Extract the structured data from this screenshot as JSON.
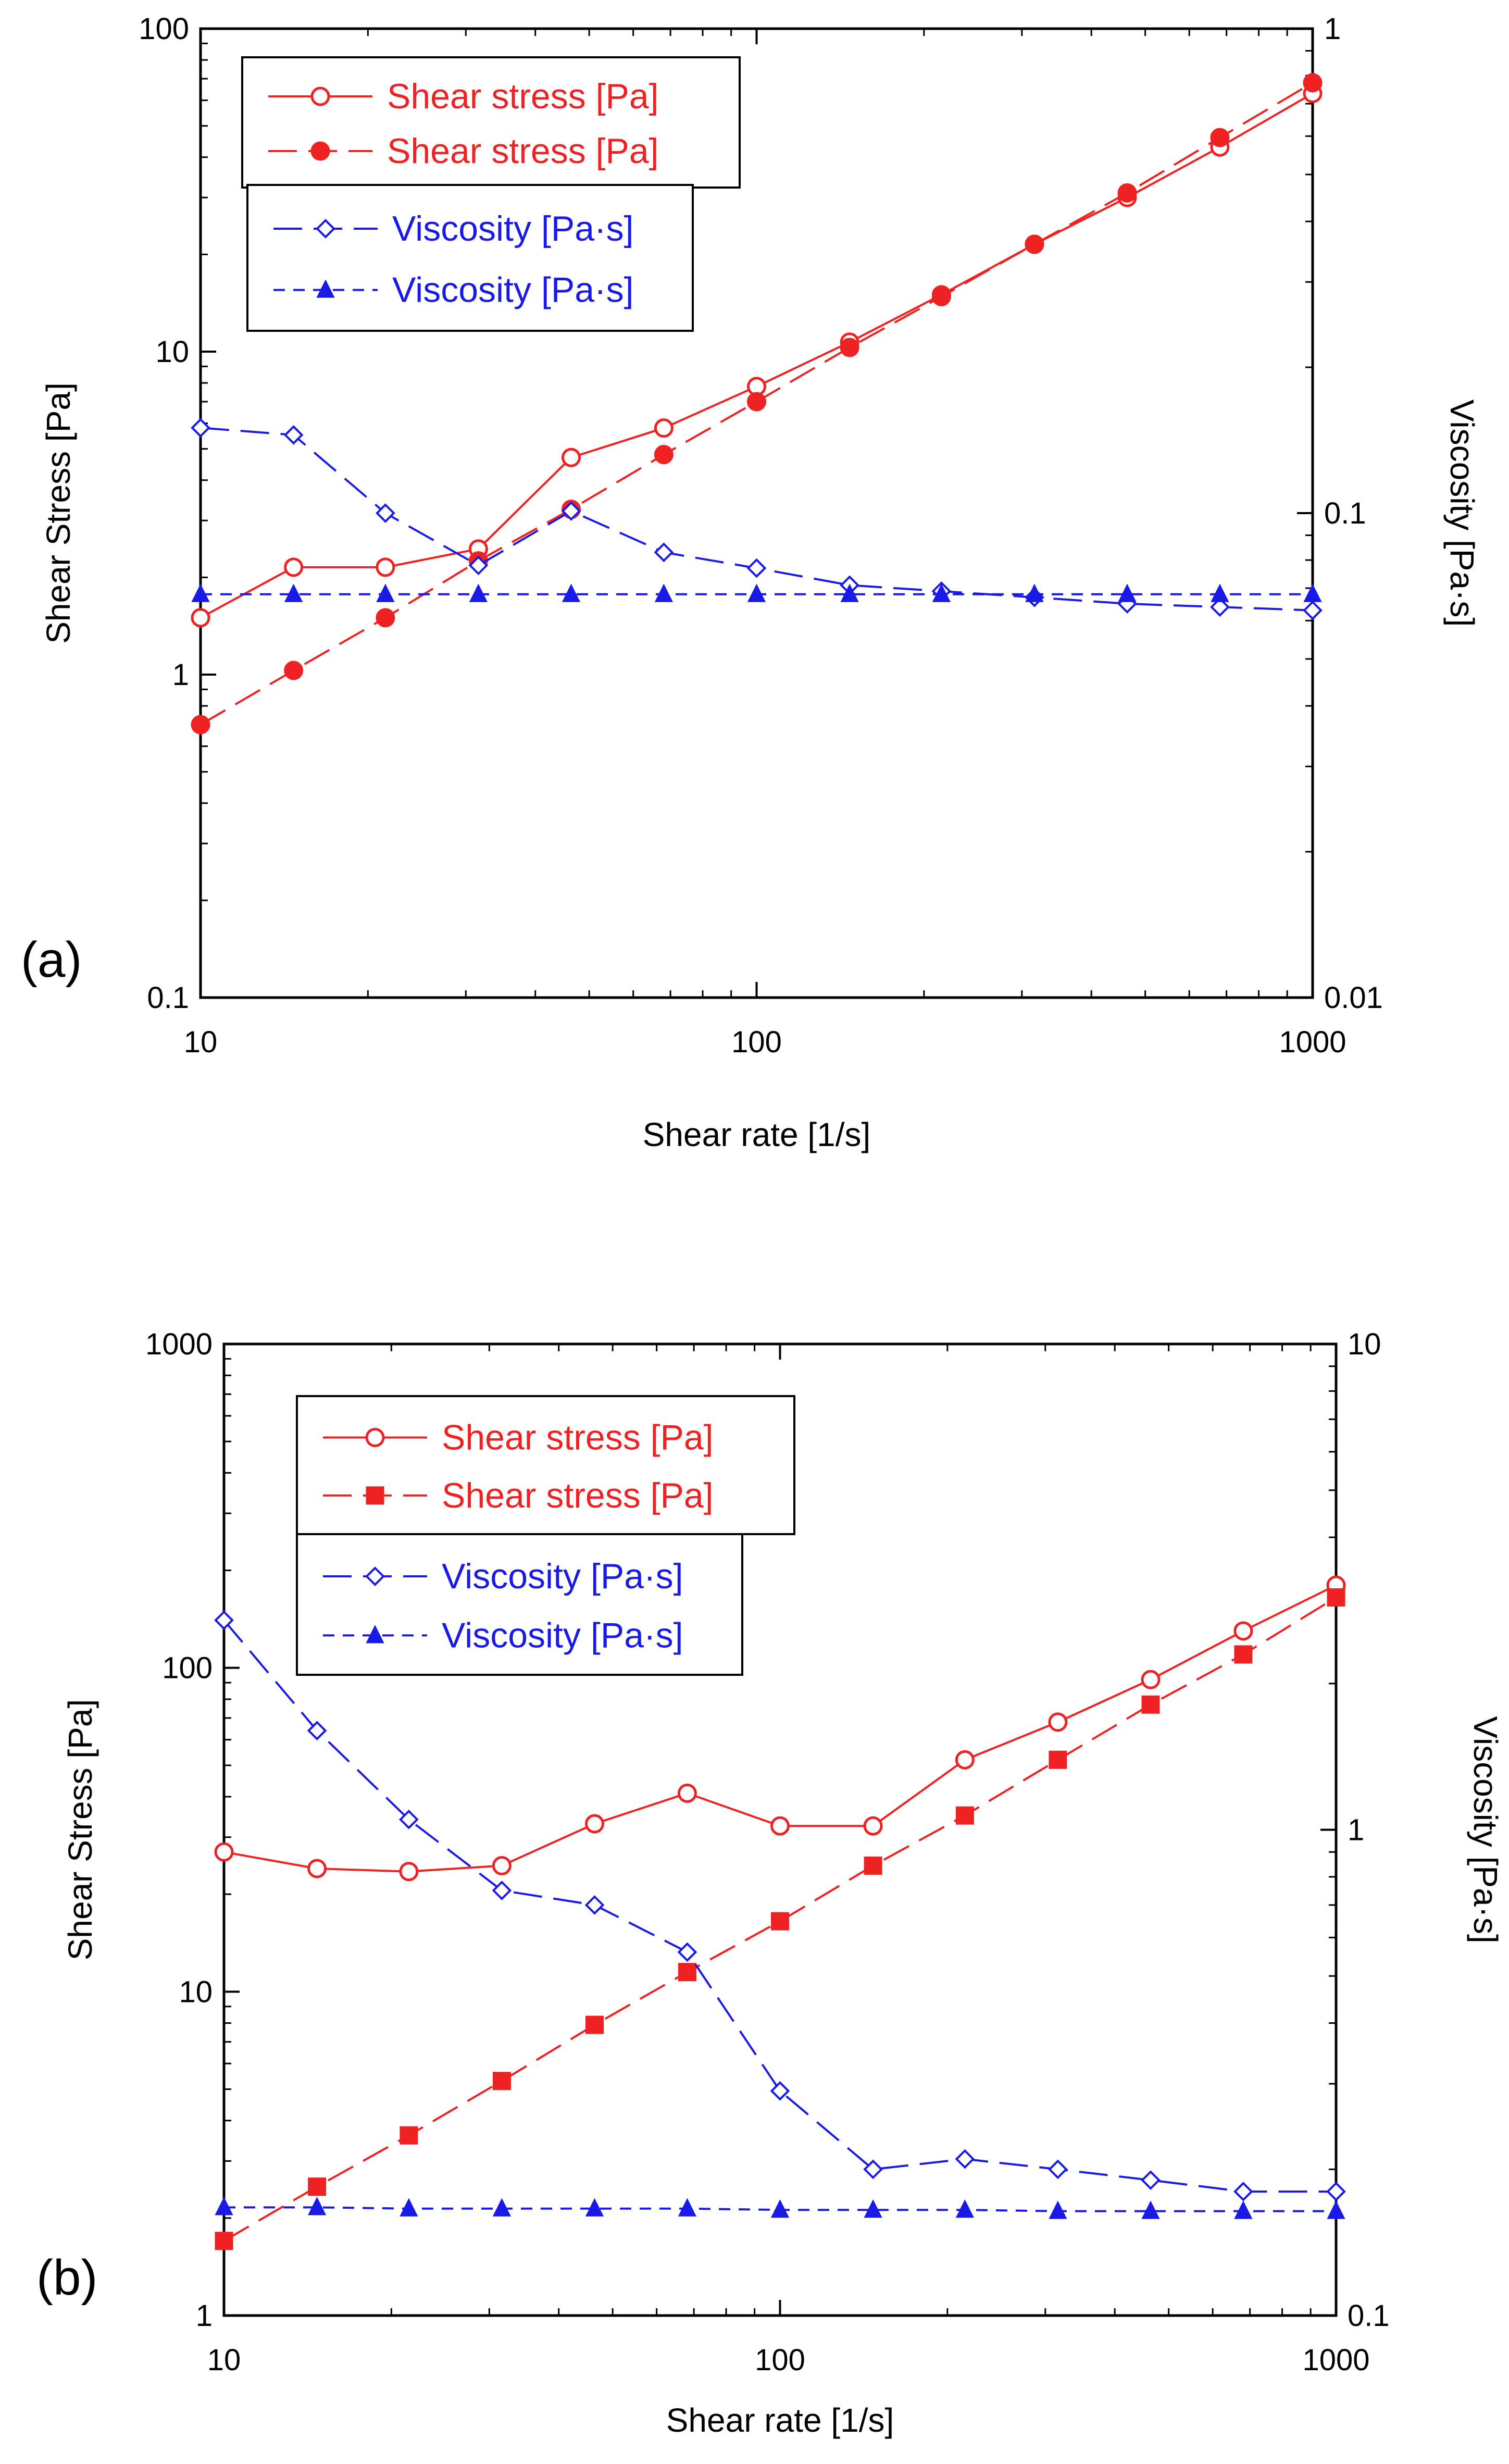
{
  "colors": {
    "stress": "#ee2222",
    "viscosity": "#1a1ae6",
    "axis": "#000000",
    "background": "#ffffff"
  },
  "chart_data": [
    {
      "panel": "(a)",
      "type": "line",
      "x_scale": "log",
      "xlabel": "Shear rate [1/s]",
      "ylabel": "Shear Stress [Pa]",
      "y2label": "Viscosity [Pa·s]",
      "xlim": [
        10,
        1000
      ],
      "ylim": [
        0.1,
        100
      ],
      "y2lim": [
        0.01,
        1
      ],
      "x_ticks": [
        10,
        100,
        1000
      ],
      "x_tick_labels": [
        "10",
        "100",
        "1000"
      ],
      "y_ticks": [
        0.1,
        1,
        10,
        100
      ],
      "y_tick_labels": [
        "0.1",
        "1",
        "10",
        "100"
      ],
      "y2_ticks": [
        0.01,
        0.1,
        1
      ],
      "y2_tick_labels": [
        "0.01",
        "0.1",
        "1"
      ],
      "legend_stress": [
        "Shear stress [Pa]",
        "Shear stress [Pa]"
      ],
      "legend_viscosity": [
        "Viscosity [Pa·s]",
        "Viscosity [Pa·s]"
      ],
      "x": [
        10,
        14.7,
        21.5,
        31.6,
        46.4,
        68.1,
        100,
        147,
        215,
        316,
        464,
        681,
        1000
      ],
      "series": [
        {
          "name": "Shear stress [Pa]",
          "axis": "left",
          "marker": "open-circle",
          "dash": "solid",
          "color": "stress",
          "values": [
            1.5,
            2.15,
            2.15,
            2.45,
            4.7,
            5.8,
            7.8,
            10.7,
            15,
            21.5,
            30,
            43,
            63
          ]
        },
        {
          "name": "Shear stress [Pa]",
          "axis": "left",
          "marker": "filled-circle",
          "dash": "longdash",
          "color": "stress",
          "values": [
            0.7,
            1.03,
            1.5,
            2.25,
            3.25,
            4.8,
            7,
            10.3,
            14.8,
            21.5,
            31,
            46,
            68
          ]
        },
        {
          "name": "Viscosity [Pa·s]",
          "axis": "right",
          "marker": "open-diamond",
          "dash": "longdash",
          "color": "viscosity",
          "values": [
            0.15,
            0.145,
            0.1,
            0.078,
            0.101,
            0.083,
            0.077,
            0.071,
            0.069,
            0.067,
            0.065,
            0.064,
            0.063
          ]
        },
        {
          "name": "Viscosity [Pa·s]",
          "axis": "right",
          "marker": "filled-triangle",
          "dash": "shortdash",
          "color": "viscosity",
          "values": [
            0.068,
            0.068,
            0.068,
            0.068,
            0.068,
            0.068,
            0.068,
            0.068,
            0.068,
            0.068,
            0.068,
            0.068,
            0.068
          ]
        }
      ]
    },
    {
      "panel": "(b)",
      "type": "line",
      "x_scale": "log",
      "xlabel": "Shear rate [1/s]",
      "ylabel": "Shear Stress [Pa]",
      "y2label": "Viscosity [Pa·s]",
      "xlim": [
        10,
        1000
      ],
      "ylim": [
        1,
        1000
      ],
      "y2lim": [
        0.1,
        10
      ],
      "x_ticks": [
        10,
        100,
        1000
      ],
      "x_tick_labels": [
        "10",
        "100",
        "1000"
      ],
      "y_ticks": [
        1,
        10,
        100,
        1000
      ],
      "y_tick_labels": [
        "1",
        "10",
        "100",
        "1000"
      ],
      "y2_ticks": [
        0.1,
        1,
        10
      ],
      "y2_tick_labels": [
        "0.1",
        "1",
        "10"
      ],
      "legend_stress": [
        "Shear stress [Pa]",
        "Shear stress [Pa]"
      ],
      "legend_viscosity": [
        "Viscosity [Pa·s]",
        "Viscosity [Pa·s]"
      ],
      "x": [
        10,
        14.7,
        21.5,
        31.6,
        46.4,
        68.1,
        100,
        147,
        215,
        316,
        464,
        681,
        1000
      ],
      "series": [
        {
          "name": "Shear stress [Pa]",
          "axis": "left",
          "marker": "open-circle",
          "dash": "solid",
          "color": "stress",
          "values": [
            27,
            24,
            23.5,
            24.5,
            33,
            41,
            32.5,
            32.5,
            52,
            68,
            92,
            130,
            180
          ]
        },
        {
          "name": "Shear stress [Pa]",
          "axis": "left",
          "marker": "filled-square",
          "dash": "longdash",
          "color": "stress",
          "values": [
            1.7,
            2.5,
            3.6,
            5.3,
            7.9,
            11.5,
            16.5,
            24.5,
            35,
            52,
            77,
            110,
            165
          ]
        },
        {
          "name": "Viscosity [Pa·s]",
          "axis": "right",
          "marker": "open-diamond",
          "dash": "longdash",
          "color": "viscosity",
          "values": [
            2.7,
            1.6,
            1.05,
            0.75,
            0.7,
            0.56,
            0.29,
            0.2,
            0.21,
            0.2,
            0.19,
            0.18,
            0.18
          ]
        },
        {
          "name": "Viscosity [Pa·s]",
          "axis": "right",
          "marker": "filled-triangle",
          "dash": "shortdash",
          "color": "viscosity",
          "values": [
            0.167,
            0.167,
            0.166,
            0.166,
            0.166,
            0.166,
            0.165,
            0.165,
            0.165,
            0.164,
            0.164,
            0.164,
            0.164
          ]
        }
      ]
    }
  ]
}
